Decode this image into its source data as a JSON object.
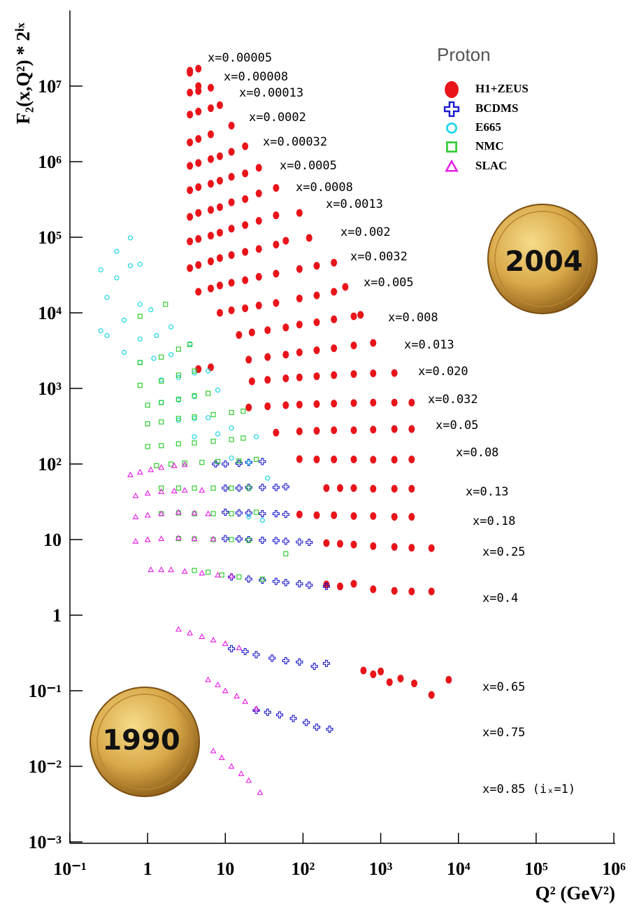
{
  "chart_data": {
    "type": "scatter",
    "ylabel": "F₂(x,Q²) * 2ⁱˣ",
    "xlabel": "Q² (GeV²)",
    "log_x": true,
    "log_y": true,
    "xlim": [
      0.1,
      1000000
    ],
    "ylim": [
      0.001,
      100000000
    ],
    "xticks": [
      {
        "value": 0.1,
        "label": "10⁻¹"
      },
      1,
      10,
      {
        "value": 100,
        "label": "10²"
      },
      {
        "value": 1000,
        "label": "10³"
      },
      {
        "value": 10000,
        "label": "10⁴"
      },
      {
        "value": 100000,
        "label": "10⁵"
      },
      {
        "value": 1000000,
        "label": "10⁶"
      }
    ],
    "yticks": [
      {
        "value": 0.001,
        "label": "10⁻³"
      },
      {
        "value": 0.01,
        "label": "10⁻²"
      },
      {
        "value": 0.1,
        "label": "10⁻¹"
      },
      1,
      10,
      {
        "value": 100,
        "label": "10²"
      },
      {
        "value": 1000,
        "label": "10³"
      },
      {
        "value": 10000,
        "label": "10⁴"
      },
      {
        "value": 100000,
        "label": "10⁵"
      },
      {
        "value": 1000000,
        "label": "10⁶"
      },
      {
        "value": 10000000,
        "label": "10⁷"
      }
    ],
    "legend_title": "Proton",
    "legend": "top-right",
    "annotations": [
      "x=0.00005",
      "x=0.00008",
      "x=0.00013",
      "x=0.0002",
      "x=0.00032",
      "x=0.0005",
      "x=0.0008",
      "x=0.0013",
      "x=0.002",
      "x=0.0032",
      "x=0.005",
      "x=0.008",
      "x=0.013",
      "x=0.020",
      "x=0.032",
      "x=0.05",
      "x=0.08",
      "x=0.13",
      "x=0.18",
      "x=0.25",
      "x=0.4",
      "x=0.65",
      "x=0.75",
      "x=0.85  (iₓ=1)"
    ],
    "medal_labels": [
      "2004",
      "1990"
    ],
    "series": [
      {
        "name": "H1+ZEUS",
        "color": "#e8141a",
        "marker": "filled-circle",
        "x": [
          3.5,
          3.5,
          4.5,
          3.5,
          4.5,
          4.5,
          6.5,
          3.5,
          4.5,
          6.5,
          8.5,
          3.5,
          4.5,
          6.5,
          12,
          3.5,
          4.5,
          6.5,
          8.5,
          12,
          18,
          3.5,
          4.5,
          6.5,
          8.5,
          12,
          18,
          27,
          3.5,
          4.5,
          6.5,
          8.5,
          12,
          18,
          27,
          45,
          3.5,
          4.5,
          6.5,
          8.5,
          12,
          18,
          27,
          45,
          90,
          3.5,
          4.5,
          6.5,
          8.5,
          12,
          18,
          27,
          45,
          60,
          120,
          4.5,
          6.5,
          8.5,
          12,
          18,
          27,
          45,
          90,
          150,
          250,
          8.5,
          12,
          18,
          27,
          45,
          90,
          150,
          250,
          350,
          15,
          22,
          35,
          60,
          90,
          150,
          250,
          450,
          550,
          4.5,
          6.5,
          20,
          35,
          60,
          90,
          150,
          250,
          450,
          800,
          22,
          35,
          60,
          90,
          150,
          250,
          450,
          800,
          1500,
          20,
          35,
          60,
          90,
          150,
          250,
          450,
          800,
          1500,
          2500,
          45,
          90,
          150,
          250,
          450,
          800,
          1500,
          2500,
          90,
          150,
          250,
          450,
          800,
          1500,
          2500,
          200,
          300,
          450,
          800,
          1500,
          2500,
          90,
          150,
          250,
          450,
          800,
          1500,
          2500,
          200,
          300,
          450,
          800,
          1500,
          2500,
          4500,
          200,
          300,
          450,
          800,
          1500,
          2500,
          4500,
          600,
          800,
          1000,
          1300,
          1800,
          2700,
          4500,
          7500
        ],
        "values": [
          16000000.0,
          15000000.0,
          17000000.0,
          8200000.0,
          8600000.0,
          10000000.0,
          9500000.0,
          4200000.0,
          4600000.0,
          5100000.0,
          5600000.0,
          1800000.0,
          2000000.0,
          2300000.0,
          3000000.0,
          880000.0,
          960000.0,
          1080000.0,
          1180000.0,
          1350000.0,
          1600000.0,
          420000.0,
          460000.0,
          510000.0,
          560000.0,
          630000.0,
          700000.0,
          830000.0,
          186000.0,
          210000.0,
          230000.0,
          250000.0,
          290000.0,
          320000.0,
          380000.0,
          450000.0,
          88000.0,
          95000.0,
          105000.0,
          115000.0,
          130000.0,
          145000.0,
          165000.0,
          195000.0,
          210000.0,
          39000.0,
          43000.0,
          48000.0,
          53000.0,
          58000.0,
          64000.0,
          70000.0,
          80000.0,
          90000.0,
          98000.0,
          19000.0,
          21000.0,
          23000.0,
          25000.0,
          27000.0,
          30000.0,
          33000.0,
          38000.0,
          42000.0,
          46000.0,
          10000.0,
          10800.0,
          11500.0,
          12500.0,
          13500.0,
          15500.0,
          17000.0,
          19000.0,
          22000.0,
          5100,
          5500,
          5900,
          6400,
          7000,
          7500,
          8200,
          9000,
          9400,
          1800,
          1900,
          2400,
          2600,
          2800,
          3000,
          3200,
          3400,
          3700,
          4000,
          1240,
          1300,
          1360,
          1400,
          1450,
          1500,
          1550,
          1580,
          1600,
          560,
          580,
          600,
          610,
          620,
          630,
          640,
          650,
          650,
          650,
          260,
          270,
          275,
          280,
          280,
          285,
          290,
          290,
          116,
          115,
          115,
          115,
          114,
          114,
          115,
          48,
          48,
          48,
          47,
          47,
          47,
          21.5,
          21,
          21,
          20.5,
          20.5,
          20,
          20,
          9,
          8.8,
          8.6,
          8.2,
          8,
          7.8,
          7.7,
          2.55,
          2.4,
          2.6,
          2.2,
          2.1,
          2.06,
          2.06,
          0.185,
          0.165,
          0.18,
          0.13,
          0.145,
          0.125,
          0.088,
          0.14
        ]
      },
      {
        "name": "BCDMS",
        "color": "#1a1acc",
        "marker": "cross",
        "x": [
          7.5,
          10,
          15,
          20,
          30,
          10,
          15,
          20,
          30,
          45,
          60,
          10,
          15,
          20,
          30,
          45,
          60,
          10,
          15,
          20,
          30,
          45,
          60,
          90,
          120,
          12,
          20,
          30,
          45,
          60,
          90,
          120,
          200,
          12,
          18,
          25,
          40,
          60,
          90,
          140,
          200,
          25,
          35,
          50,
          75,
          110,
          150,
          220
        ],
        "values": [
          100,
          100,
          102,
          105,
          108,
          48,
          48,
          49,
          49,
          49,
          50,
          23,
          22.5,
          22.5,
          22,
          22,
          21.5,
          10.3,
          10.2,
          10,
          9.8,
          9.7,
          9.5,
          9.3,
          9.2,
          3.2,
          3,
          2.9,
          2.8,
          2.7,
          2.6,
          2.5,
          2.4,
          0.36,
          0.33,
          0.3,
          0.27,
          0.25,
          0.24,
          0.21,
          0.23,
          0.055,
          0.052,
          0.048,
          0.043,
          0.038,
          0.033,
          0.031
        ]
      },
      {
        "name": "E665",
        "color": "#1ad6e6",
        "marker": "circle",
        "x": [
          0.25,
          0.4,
          0.6,
          0.25,
          0.3,
          0.4,
          0.6,
          0.8,
          0.3,
          0.5,
          0.8,
          1.1,
          0.5,
          0.8,
          1.3,
          2,
          0.8,
          1.2,
          2,
          3.5,
          1.5,
          2.5,
          4,
          6,
          1.5,
          2.5,
          4,
          8,
          2.5,
          4,
          6,
          4,
          8,
          12,
          25,
          12,
          20,
          35,
          20,
          30
        ],
        "values": [
          37000,
          65000,
          98000,
          5800,
          16000,
          29000,
          42000,
          44000,
          5000,
          8000,
          13000,
          11000,
          3000,
          4500,
          5000,
          6500,
          2200,
          2500,
          2800,
          3900,
          1300,
          1400,
          1600,
          1700,
          650,
          700,
          780,
          950,
          380,
          400,
          410,
          230,
          250,
          300,
          230,
          120,
          105,
          65,
          20,
          18
        ]
      },
      {
        "name": "NMC",
        "color": "#33cc33",
        "marker": "square",
        "x": [
          0.8,
          1.7,
          0.8,
          1.5,
          2.5,
          3.5,
          0.8,
          1.5,
          2.5,
          4,
          1,
          1.5,
          2.5,
          4,
          6,
          1,
          1.5,
          2.5,
          4,
          7,
          12,
          17,
          1,
          1.5,
          2.5,
          4,
          7,
          12,
          17,
          1.3,
          2,
          3,
          5,
          8,
          15,
          25,
          1.5,
          2.5,
          4,
          7,
          12,
          20,
          1.5,
          2.5,
          4,
          7,
          12,
          25,
          2.5,
          4,
          7,
          12,
          20,
          60,
          4,
          6,
          9,
          15,
          30
        ],
        "values": [
          9000,
          13000,
          2200,
          2600,
          3300,
          3800,
          1100,
          1250,
          1500,
          1700,
          600,
          650,
          720,
          800,
          860,
          340,
          360,
          400,
          420,
          450,
          480,
          500,
          170,
          175,
          185,
          190,
          200,
          210,
          220,
          95,
          100,
          103,
          105,
          108,
          110,
          115,
          48,
          48,
          48,
          48,
          48,
          48,
          22,
          22.5,
          22,
          22,
          22,
          23,
          10.3,
          10.2,
          10,
          10,
          9.8,
          6.5,
          3.9,
          3.7,
          3.4,
          3.2,
          3
        ]
      },
      {
        "name": "SLAC",
        "color": "#e619e6",
        "marker": "triangle",
        "x": [
          0.6,
          0.8,
          1.1,
          1.5,
          2.2,
          3,
          0.7,
          1,
          1.5,
          2.2,
          3,
          5,
          0.7,
          1,
          1.5,
          2.5,
          4,
          6,
          0.7,
          1,
          1.5,
          2.5,
          4,
          7,
          1.1,
          1.5,
          2,
          3,
          5,
          8,
          12,
          2.5,
          3.5,
          5,
          7,
          10,
          15,
          6,
          8,
          10,
          14,
          18,
          25,
          7,
          9,
          12,
          16,
          20,
          28
        ],
        "values": [
          72,
          78,
          84,
          90,
          95,
          98,
          38,
          41,
          43,
          44,
          45,
          45,
          20,
          21,
          22,
          23,
          22.5,
          22,
          9.5,
          10,
          10.3,
          10.5,
          10.3,
          10.2,
          4,
          4,
          4,
          3.8,
          3.6,
          3.4,
          3.3,
          0.65,
          0.58,
          0.52,
          0.47,
          0.42,
          0.37,
          0.14,
          0.12,
          0.1,
          0.085,
          0.072,
          0.058,
          0.016,
          0.013,
          0.01,
          0.008,
          0.0065,
          0.0045
        ]
      }
    ]
  }
}
